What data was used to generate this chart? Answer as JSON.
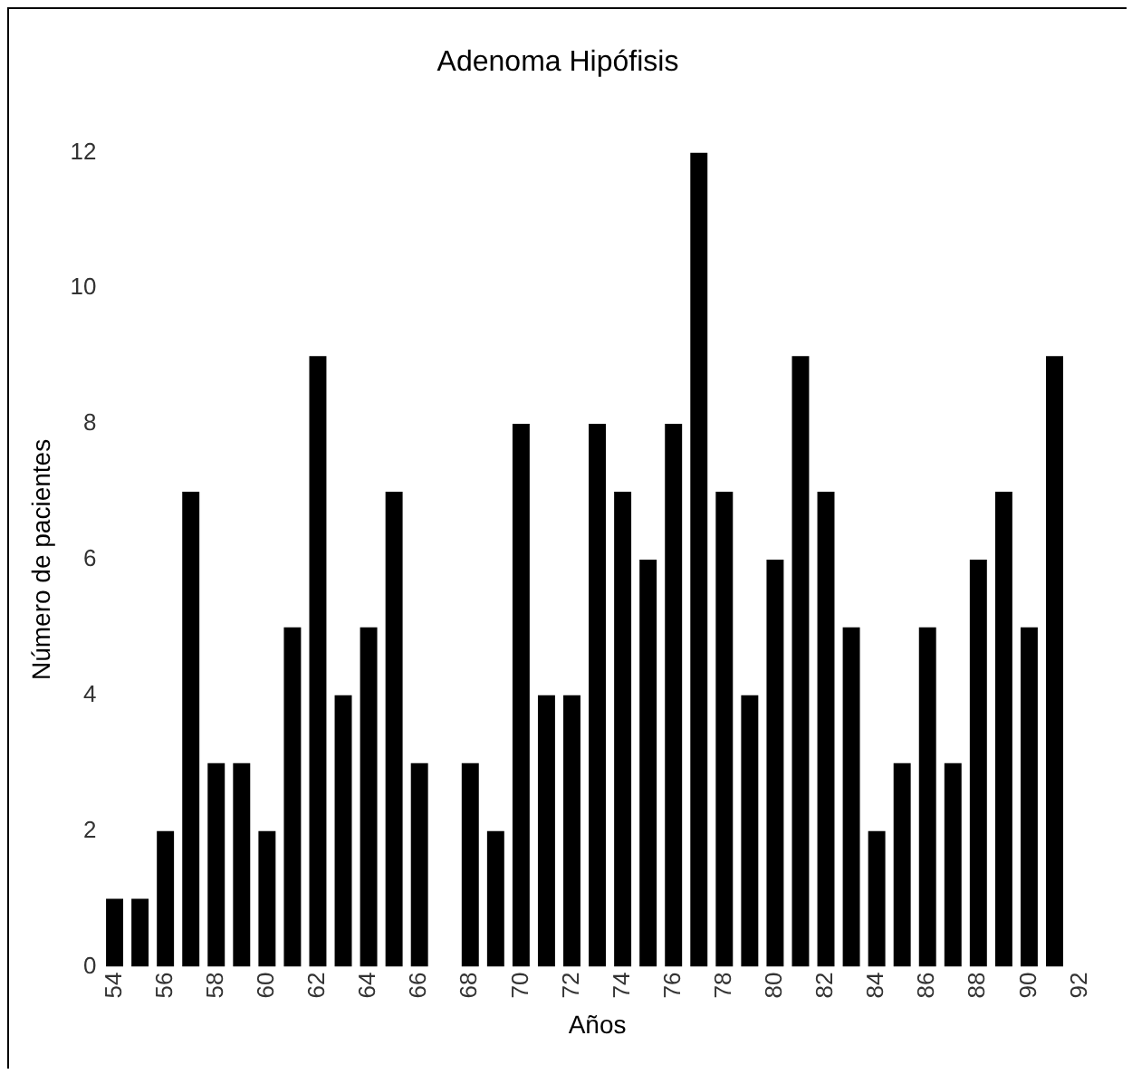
{
  "chart_data": {
    "type": "bar",
    "title": "Adenoma Hipófisis",
    "xlabel": "Años",
    "ylabel": "Número de pacientes",
    "categories": [
      "54",
      null,
      "56",
      null,
      "58",
      null,
      "60",
      null,
      "62",
      null,
      "64",
      null,
      "66",
      null,
      "68",
      null,
      "70",
      null,
      "72",
      null,
      "74",
      null,
      "76",
      null,
      "78",
      null,
      "80",
      null,
      "82",
      null,
      "84",
      null,
      "86",
      null,
      "88",
      null,
      "90",
      null,
      "92"
    ],
    "values": [
      1,
      1,
      2,
      7,
      3,
      3,
      2,
      5,
      9,
      4,
      5,
      7,
      3,
      0,
      3,
      2,
      8,
      4,
      4,
      8,
      7,
      6,
      8,
      12,
      7,
      4,
      6,
      9,
      7,
      5,
      2,
      3,
      5,
      3,
      6,
      7,
      5,
      9,
      0
    ],
    "color": "#000000",
    "ylim": [
      0,
      12
    ],
    "yticks": [
      0,
      2,
      4,
      6,
      8,
      10,
      12
    ],
    "grid": false,
    "legend": false
  }
}
